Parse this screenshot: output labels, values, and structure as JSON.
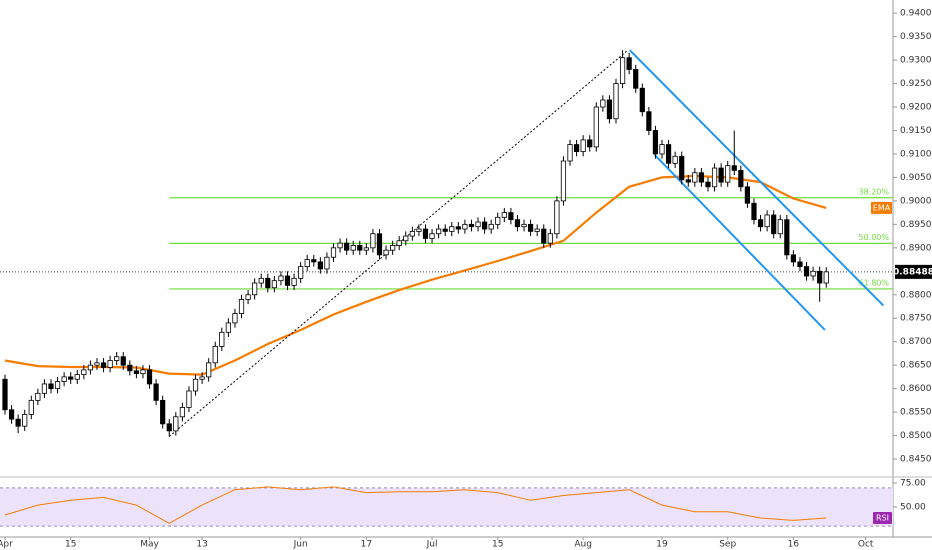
{
  "chart_data": {
    "type": "candlestick",
    "colors": {
      "up": "#ffffff",
      "down": "#000000",
      "wick": "#000000"
    },
    "open": [
      0.862,
      0.8555,
      0.8535,
      0.852,
      0.8545,
      0.8575,
      0.859,
      0.861,
      0.86,
      0.8615,
      0.8625,
      0.862,
      0.863,
      0.864,
      0.865,
      0.8655,
      0.8645,
      0.866,
      0.8668,
      0.865,
      0.8638,
      0.8632,
      0.864,
      0.861,
      0.8575,
      0.8525,
      0.851,
      0.854,
      0.856,
      0.8595,
      0.862,
      0.8625,
      0.8655,
      0.869,
      0.872,
      0.874,
      0.876,
      0.879,
      0.88,
      0.8825,
      0.8835,
      0.8815,
      0.883,
      0.884,
      0.882,
      0.8835,
      0.886,
      0.8875,
      0.887,
      0.8855,
      0.888,
      0.89,
      0.891,
      0.8895,
      0.8905,
      0.8895,
      0.89,
      0.893,
      0.8885,
      0.8895,
      0.8905,
      0.8915,
      0.8925,
      0.8935,
      0.894,
      0.892,
      0.893,
      0.894,
      0.8935,
      0.8945,
      0.894,
      0.895,
      0.8945,
      0.8955,
      0.894,
      0.895,
      0.8965,
      0.8975,
      0.896,
      0.8945,
      0.895,
      0.8935,
      0.894,
      0.891,
      0.893,
      0.9,
      0.9085,
      0.912,
      0.9105,
      0.913,
      0.9115,
      0.92,
      0.9215,
      0.9175,
      0.925,
      0.9305,
      0.928,
      0.924,
      0.919,
      0.915,
      0.91,
      0.912,
      0.908,
      0.9095,
      0.9045,
      0.904,
      0.906,
      0.904,
      0.903,
      0.907,
      0.904,
      0.9075,
      0.9065,
      0.903,
      0.8995,
      0.896,
      0.8945,
      0.897,
      0.893,
      0.896,
      0.8885,
      0.887,
      0.886,
      0.884,
      0.885,
      0.8825
    ],
    "high": [
      0.863,
      0.8565,
      0.8545,
      0.8555,
      0.8585,
      0.86,
      0.862,
      0.862,
      0.8625,
      0.8635,
      0.8635,
      0.864,
      0.865,
      0.866,
      0.8665,
      0.8665,
      0.867,
      0.8678,
      0.8678,
      0.866,
      0.8648,
      0.865,
      0.865,
      0.862,
      0.8585,
      0.8535,
      0.855,
      0.857,
      0.8605,
      0.863,
      0.8635,
      0.8665,
      0.87,
      0.873,
      0.875,
      0.877,
      0.88,
      0.881,
      0.8835,
      0.8845,
      0.8845,
      0.884,
      0.885,
      0.885,
      0.8845,
      0.887,
      0.8885,
      0.8885,
      0.888,
      0.889,
      0.891,
      0.892,
      0.892,
      0.8915,
      0.8915,
      0.891,
      0.894,
      0.894,
      0.8905,
      0.8915,
      0.8925,
      0.8935,
      0.8945,
      0.895,
      0.895,
      0.894,
      0.895,
      0.895,
      0.8955,
      0.8955,
      0.896,
      0.896,
      0.8965,
      0.8965,
      0.896,
      0.8975,
      0.8985,
      0.8985,
      0.897,
      0.896,
      0.896,
      0.895,
      0.895,
      0.894,
      0.901,
      0.9095,
      0.913,
      0.913,
      0.914,
      0.914,
      0.921,
      0.9225,
      0.9225,
      0.926,
      0.9321,
      0.9315,
      0.929,
      0.925,
      0.92,
      0.916,
      0.913,
      0.913,
      0.9105,
      0.9105,
      0.9055,
      0.907,
      0.907,
      0.905,
      0.908,
      0.908,
      0.9085,
      0.915,
      0.9075,
      0.904,
      0.9005,
      0.897,
      0.898,
      0.898,
      0.897,
      0.897,
      0.8895,
      0.888,
      0.887,
      0.886,
      0.886,
      0.8859
    ],
    "low": [
      0.8545,
      0.8525,
      0.8505,
      0.851,
      0.8535,
      0.8565,
      0.858,
      0.859,
      0.859,
      0.8605,
      0.861,
      0.861,
      0.862,
      0.863,
      0.864,
      0.8635,
      0.8635,
      0.865,
      0.864,
      0.8628,
      0.8622,
      0.8622,
      0.86,
      0.8565,
      0.8515,
      0.8498,
      0.85,
      0.853,
      0.855,
      0.8585,
      0.861,
      0.8615,
      0.8645,
      0.868,
      0.871,
      0.873,
      0.875,
      0.878,
      0.879,
      0.8815,
      0.8805,
      0.8805,
      0.882,
      0.881,
      0.881,
      0.8825,
      0.885,
      0.886,
      0.8845,
      0.8845,
      0.887,
      0.889,
      0.8885,
      0.8885,
      0.8885,
      0.8885,
      0.889,
      0.8875,
      0.8875,
      0.8885,
      0.8895,
      0.8905,
      0.8915,
      0.8925,
      0.891,
      0.891,
      0.892,
      0.8925,
      0.8925,
      0.893,
      0.893,
      0.8935,
      0.8935,
      0.893,
      0.893,
      0.894,
      0.8955,
      0.895,
      0.8935,
      0.8935,
      0.8925,
      0.8925,
      0.89,
      0.89,
      0.892,
      0.899,
      0.9075,
      0.9095,
      0.9095,
      0.9105,
      0.9105,
      0.919,
      0.9165,
      0.9165,
      0.924,
      0.927,
      0.923,
      0.918,
      0.914,
      0.909,
      0.909,
      0.907,
      0.907,
      0.9035,
      0.903,
      0.903,
      0.903,
      0.902,
      0.902,
      0.903,
      0.903,
      0.9055,
      0.902,
      0.8985,
      0.895,
      0.8935,
      0.8935,
      0.892,
      0.892,
      0.8875,
      0.886,
      0.885,
      0.883,
      0.883,
      0.8785,
      0.8815
    ],
    "close": [
      0.8555,
      0.8535,
      0.852,
      0.8545,
      0.8575,
      0.859,
      0.861,
      0.86,
      0.8615,
      0.8625,
      0.862,
      0.863,
      0.864,
      0.865,
      0.8655,
      0.8645,
      0.866,
      0.8668,
      0.865,
      0.8638,
      0.8632,
      0.864,
      0.861,
      0.8575,
      0.8525,
      0.851,
      0.854,
      0.856,
      0.8595,
      0.862,
      0.8625,
      0.8655,
      0.869,
      0.872,
      0.874,
      0.876,
      0.879,
      0.88,
      0.8825,
      0.8835,
      0.8815,
      0.883,
      0.884,
      0.882,
      0.8835,
      0.886,
      0.8875,
      0.887,
      0.8855,
      0.888,
      0.89,
      0.891,
      0.8895,
      0.8905,
      0.8895,
      0.89,
      0.893,
      0.8885,
      0.8895,
      0.8905,
      0.8915,
      0.8925,
      0.8935,
      0.894,
      0.892,
      0.893,
      0.894,
      0.8935,
      0.8945,
      0.894,
      0.895,
      0.8945,
      0.8955,
      0.894,
      0.895,
      0.8965,
      0.8975,
      0.896,
      0.8945,
      0.895,
      0.8935,
      0.894,
      0.891,
      0.893,
      0.9,
      0.9085,
      0.912,
      0.9105,
      0.913,
      0.9115,
      0.92,
      0.9215,
      0.9175,
      0.925,
      0.9305,
      0.928,
      0.924,
      0.919,
      0.915,
      0.91,
      0.912,
      0.908,
      0.9095,
      0.9045,
      0.904,
      0.906,
      0.904,
      0.903,
      0.907,
      0.904,
      0.9075,
      0.9065,
      0.903,
      0.8995,
      0.896,
      0.8945,
      0.897,
      0.893,
      0.896,
      0.8885,
      0.887,
      0.886,
      0.884,
      0.885,
      0.8825,
      0.88488
    ],
    "xlim": [
      -0.761,
      135.16
    ],
    "xticks": [
      {
        "value": 0,
        "label": "Apr"
      },
      {
        "value": 10,
        "label": "15"
      },
      {
        "value": 22,
        "label": "May"
      },
      {
        "value": 30,
        "label": "13"
      },
      {
        "value": 45,
        "label": "Jun"
      },
      {
        "value": 55,
        "label": "17"
      },
      {
        "value": 65,
        "label": "Jul"
      },
      {
        "value": 75,
        "label": "15"
      },
      {
        "value": 88,
        "label": "Aug"
      },
      {
        "value": 100,
        "label": "19"
      },
      {
        "value": 110,
        "label": "Sep"
      },
      {
        "value": 120,
        "label": "16"
      },
      {
        "value": 131,
        "label": "Oct"
      }
    ],
    "ylim": [
      0.8416,
      0.9428
    ],
    "yticks": [
      {
        "value": 0.845,
        "label": "0.84500"
      },
      {
        "value": 0.85,
        "label": "0.85000"
      },
      {
        "value": 0.855,
        "label": "0.85500"
      },
      {
        "value": 0.86,
        "label": "0.86000"
      },
      {
        "value": 0.865,
        "label": "0.86500"
      },
      {
        "value": 0.87,
        "label": "0.87000"
      },
      {
        "value": 0.875,
        "label": "0.87500"
      },
      {
        "value": 0.88,
        "label": "0.88000"
      },
      {
        "value": 0.885,
        "label": "0.88500"
      },
      {
        "value": 0.89,
        "label": "0.89000"
      },
      {
        "value": 0.895,
        "label": "0.89500"
      },
      {
        "value": 0.9,
        "label": "0.90000"
      },
      {
        "value": 0.905,
        "label": "0.90500"
      },
      {
        "value": 0.91,
        "label": "0.91000"
      },
      {
        "value": 0.915,
        "label": "0.91500"
      },
      {
        "value": 0.92,
        "label": "0.92000"
      },
      {
        "value": 0.925,
        "label": "0.92500"
      },
      {
        "value": 0.93,
        "label": "0.93000"
      },
      {
        "value": 0.935,
        "label": "0.93500"
      },
      {
        "value": 0.94,
        "label": "0.94000"
      }
    ],
    "last_price": 0.88488,
    "ema": {
      "name": "EMA",
      "color": "#f57c00",
      "x": [
        0,
        5,
        10,
        15,
        20,
        25,
        30,
        35,
        40,
        45,
        50,
        55,
        60,
        65,
        70,
        75,
        80,
        85,
        90,
        95,
        100,
        105,
        110,
        115,
        120,
        125
      ],
      "values": [
        0.866,
        0.8648,
        0.8646,
        0.8646,
        0.8645,
        0.8632,
        0.863,
        0.866,
        0.8695,
        0.8725,
        0.8758,
        0.8785,
        0.881,
        0.8832,
        0.8852,
        0.8872,
        0.8893,
        0.8915,
        0.8975,
        0.903,
        0.905,
        0.9053,
        0.905,
        0.904,
        0.9005,
        0.8985
      ]
    },
    "fib": {
      "color": "#6fdc3c",
      "x_start": 25,
      "high": 0.9321,
      "low": 0.8498,
      "levels": [
        {
          "ratio": 38.2,
          "label": "38.20%"
        },
        {
          "ratio": 50,
          "label": "50.00%"
        },
        {
          "ratio": 61.8,
          "label": "61.80%"
        }
      ]
    },
    "trend_lines": [
      {
        "color": "#000000",
        "dash": true,
        "x": [
          25,
          94.8
        ],
        "y": [
          0.8498,
          0.9321
        ]
      },
      {
        "color": "#2196f3",
        "dash": false,
        "x": [
          95.1,
          133.7
        ],
        "y": [
          0.9321,
          0.8777
        ]
      },
      {
        "color": "#2196f3",
        "dash": false,
        "x": [
          98.9,
          124.8
        ],
        "y": [
          0.9098,
          0.8725
        ]
      }
    ],
    "rsi": {
      "name": "RSI",
      "color": "#f57c00",
      "band": [
        30,
        70
      ],
      "band_color": "#ece3fb",
      "tag_color": "#9c27b0",
      "x": [
        0,
        5,
        10,
        15,
        20,
        25,
        30,
        35,
        40,
        45,
        50,
        55,
        60,
        65,
        70,
        75,
        80,
        85,
        90,
        95,
        100,
        105,
        110,
        115,
        120,
        125
      ],
      "values": [
        41.7,
        52,
        57,
        60,
        52,
        33,
        52,
        68,
        71,
        68,
        71,
        65,
        66,
        66,
        68,
        65,
        57,
        62,
        65,
        68,
        52,
        45,
        45,
        38.5,
        36,
        38.5
      ],
      "ylim": [
        20.8,
        79.2
      ],
      "yticks": [
        {
          "value": 75,
          "label": "75.00"
        },
        {
          "value": 50,
          "label": "50.00"
        }
      ]
    }
  }
}
